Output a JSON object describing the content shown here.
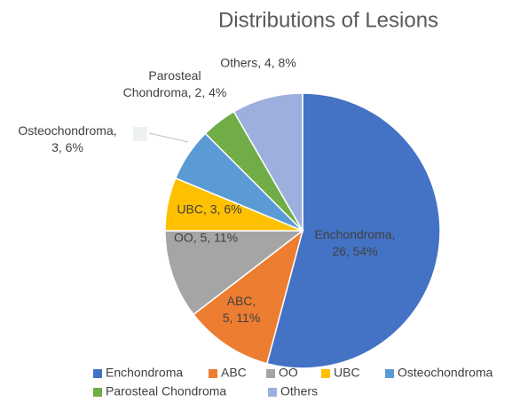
{
  "chart_data": {
    "type": "pie",
    "title": "Distributions of Lesions",
    "categories": [
      "Enchondroma",
      "ABC",
      "OO",
      "UBC",
      "Osteochondroma",
      "Parosteal Chondroma",
      "Others"
    ],
    "values": [
      26,
      5,
      5,
      3,
      3,
      2,
      4
    ],
    "value_labels": [
      [
        "Enchondroma,",
        "26, 54%"
      ],
      [
        "ABC,",
        "5, 11%"
      ],
      [
        "OO, 5, 11%"
      ],
      [
        "UBC, 3, 6%"
      ],
      [
        "Osteochondroma,",
        "3, 6%"
      ],
      [
        "Parosteal",
        "Chondroma, 2, 4%"
      ],
      [
        "Others, 4, 8%"
      ]
    ],
    "colors": [
      "#4472c4",
      "#ed7d31",
      "#a5a5a5",
      "#ffc000",
      "#5b9bd5",
      "#70ad47",
      "#9dafdc"
    ],
    "legend": "bottom"
  }
}
